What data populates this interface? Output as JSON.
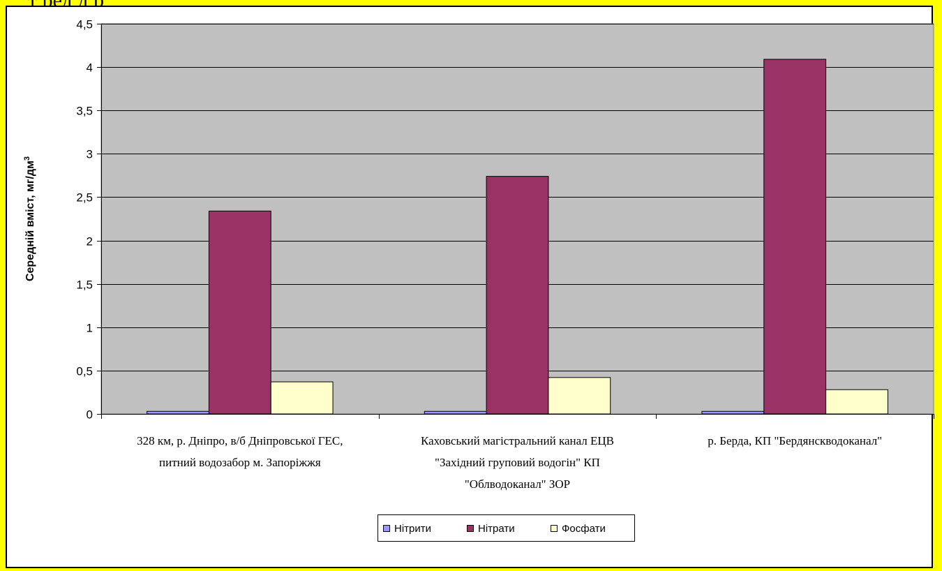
{
  "page": {
    "top_fragment": "т ред д р",
    "colors": {
      "background": "#ffff00",
      "plot_area": "#c0c0c0",
      "frame": "#ffffff"
    }
  },
  "chart_data": {
    "type": "bar",
    "title": "",
    "xlabel": "",
    "ylabel": "Середній вміст, мг/дм",
    "ylabel_superscript": "3",
    "ylim": [
      0,
      4.5
    ],
    "yticks": [
      0,
      0.5,
      1,
      1.5,
      2,
      2.5,
      3,
      3.5,
      4,
      4.5
    ],
    "ytick_labels": [
      "0",
      "0,5",
      "1",
      "1,5",
      "2",
      "2,5",
      "3",
      "3,5",
      "4",
      "4,5"
    ],
    "grid": true,
    "legend_position": "bottom",
    "categories": [
      [
        "328 км, р. Дніпро, в/б Дніпровської ГЕС,",
        "питний водозабор м. Запоріжжя"
      ],
      [
        "Каховський магістральний канал ЕЦВ",
        "\"Західний груповий водогін\" КП",
        "\"Облводоканал\" ЗОР"
      ],
      [
        "р. Берда, КП \"Бердянскводоканал\""
      ]
    ],
    "series": [
      {
        "name": "Нітрити",
        "color": "#9999ff",
        "values": [
          0.03,
          0.03,
          0.03
        ]
      },
      {
        "name": "Нітрати",
        "color": "#993366",
        "values": [
          2.34,
          2.74,
          4.09
        ]
      },
      {
        "name": "Фосфати",
        "color": "#ffffcc",
        "values": [
          0.37,
          0.42,
          0.28
        ]
      }
    ]
  }
}
